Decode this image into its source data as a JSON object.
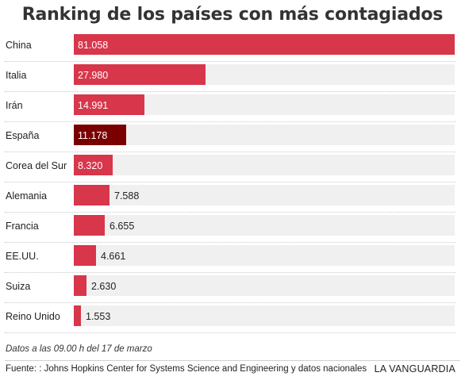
{
  "title": "Ranking de los países con más contagiados",
  "note": "Datos a las 09.00 h del 17 de marzo",
  "source": "Fuente: : Johns Hopkins Center for Systems Science and Engineering y datos nacionales",
  "brand": "LA VANGUARDIA",
  "colors": {
    "bar": "#d7364b",
    "highlight": "#7a0000",
    "track": "#f0f0f0"
  },
  "chart_data": {
    "type": "bar",
    "orientation": "horizontal",
    "title": "Ranking de los países con más contagiados",
    "categories": [
      "China",
      "Italia",
      "Irán",
      "España",
      "Corea del Sur",
      "Alemania",
      "Francia",
      "EE.UU.",
      "Suiza",
      "Reino Unido"
    ],
    "values": [
      81058,
      27980,
      14991,
      11178,
      8320,
      7588,
      6655,
      4661,
      2630,
      1553
    ],
    "value_labels": [
      "81.058",
      "27.980",
      "14.991",
      "11.178",
      "8.320",
      "7.588",
      "6.655",
      "4.661",
      "2.630",
      "1.553"
    ],
    "highlight": "España",
    "xlim": [
      0,
      81058
    ],
    "grid": false,
    "legend": "none"
  }
}
